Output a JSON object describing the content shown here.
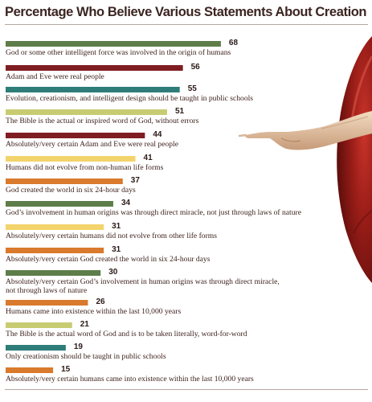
{
  "chart_data": {
    "type": "bar",
    "orientation": "horizontal",
    "title": "Percentage Who Believe Various Statements About Creation",
    "xlim": [
      0,
      100
    ],
    "grid": false,
    "legend": "none",
    "categories": [
      "God or some other intelligent force was involved in the origin of humans",
      "Adam and Eve were real people",
      "Evolution, creationism, and intelligent design should be taught in public schools",
      "The Bible is the actual or inspired word of God, without errors",
      "Absolutely/very certain Adam and Eve were real people",
      "Humans did not evolve from non-human life forms",
      "God created the world in six 24-hour days",
      "God’s involvement in human origins was through direct miracle, not just through laws of nature",
      "Absolutely/very certain humans did not evolve from other life forms",
      "Absolutely/very certain God created the world in six 24-hour days",
      [
        "Absolutely/very certain God’s involvement in human origins was through direct miracle,",
        "not through laws of nature"
      ],
      "Humans came into existence within the last 10,000 years",
      "The Bible is the actual word of God and is to be taken literally, word-for-word",
      "Only creationism should be taught in public schools",
      "Absolutely/very certain humans came into existence within the last 10,000 years"
    ],
    "values": [
      68,
      56,
      55,
      51,
      44,
      41,
      37,
      34,
      31,
      31,
      30,
      26,
      21,
      19,
      15
    ],
    "value_labels": [
      "68",
      "56",
      "55",
      "51",
      "44",
      "41",
      "37",
      "34",
      "31",
      "31",
      "30",
      "26",
      "21",
      "19",
      "15"
    ],
    "bar_colors": [
      "#5e7d4a",
      "#7f1d22",
      "#2e7d78",
      "#c7cc72",
      "#7f1d22",
      "#f3d36b",
      "#d97a2c",
      "#5e7d4a",
      "#f3d36b",
      "#d97a2c",
      "#5e7d4a",
      "#d97a2c",
      "#c7cc72",
      "#2e7d78",
      "#d97a2c"
    ]
  },
  "colors": {
    "title": "#3b2420",
    "text": "#3a1e1a",
    "rule": "#b5a7a0"
  }
}
